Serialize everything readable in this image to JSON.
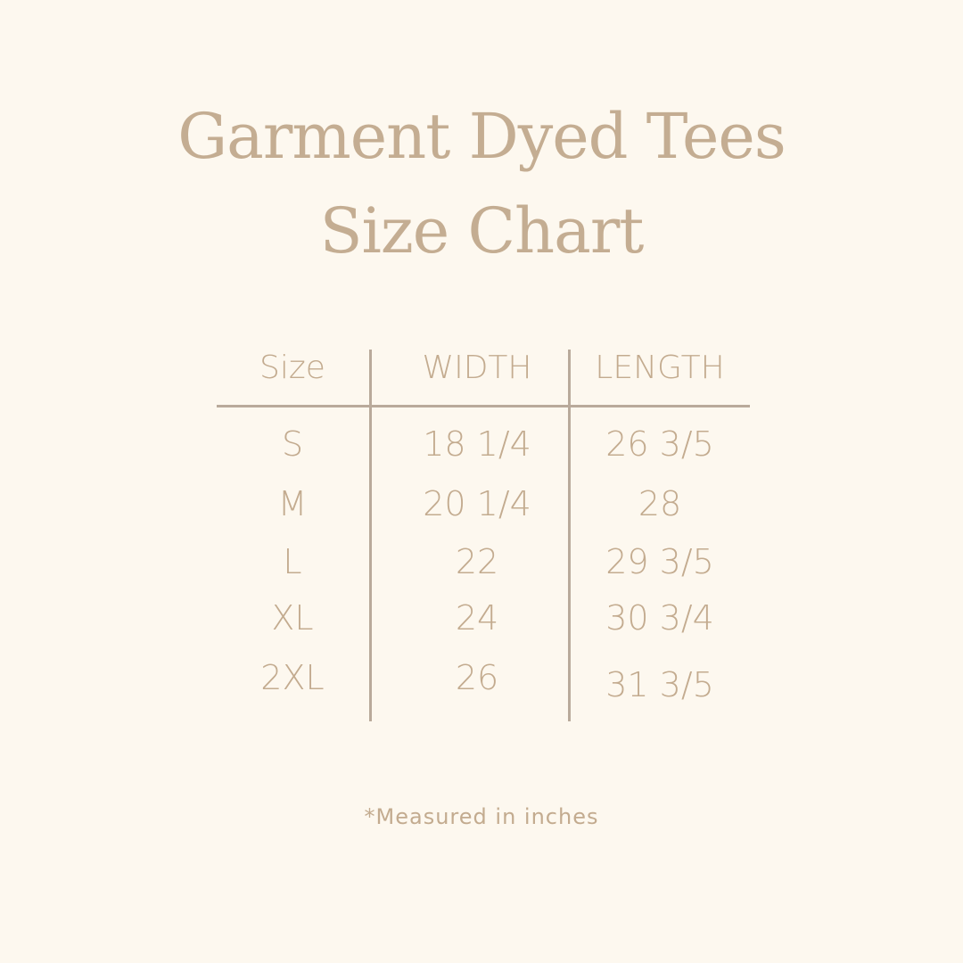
{
  "title_line1": "Garment Dyed Tees",
  "title_line2": "Size Chart",
  "table": {
    "headers": [
      "Size",
      "WIDTH",
      "LENGTH"
    ],
    "rows": [
      [
        "S",
        "18 1/4",
        "26 3/5"
      ],
      [
        "M",
        "20 1/4",
        "28"
      ],
      [
        "L",
        "22",
        "29 3/5"
      ],
      [
        "XL",
        "24",
        "30 3/4"
      ],
      [
        "2XL",
        "26",
        "31 3/5"
      ]
    ]
  },
  "footnote": "*Measured in inches",
  "colors": {
    "background": "#fdf8ef",
    "text": "#c3ab8f",
    "lines": "#b9aa9b"
  }
}
